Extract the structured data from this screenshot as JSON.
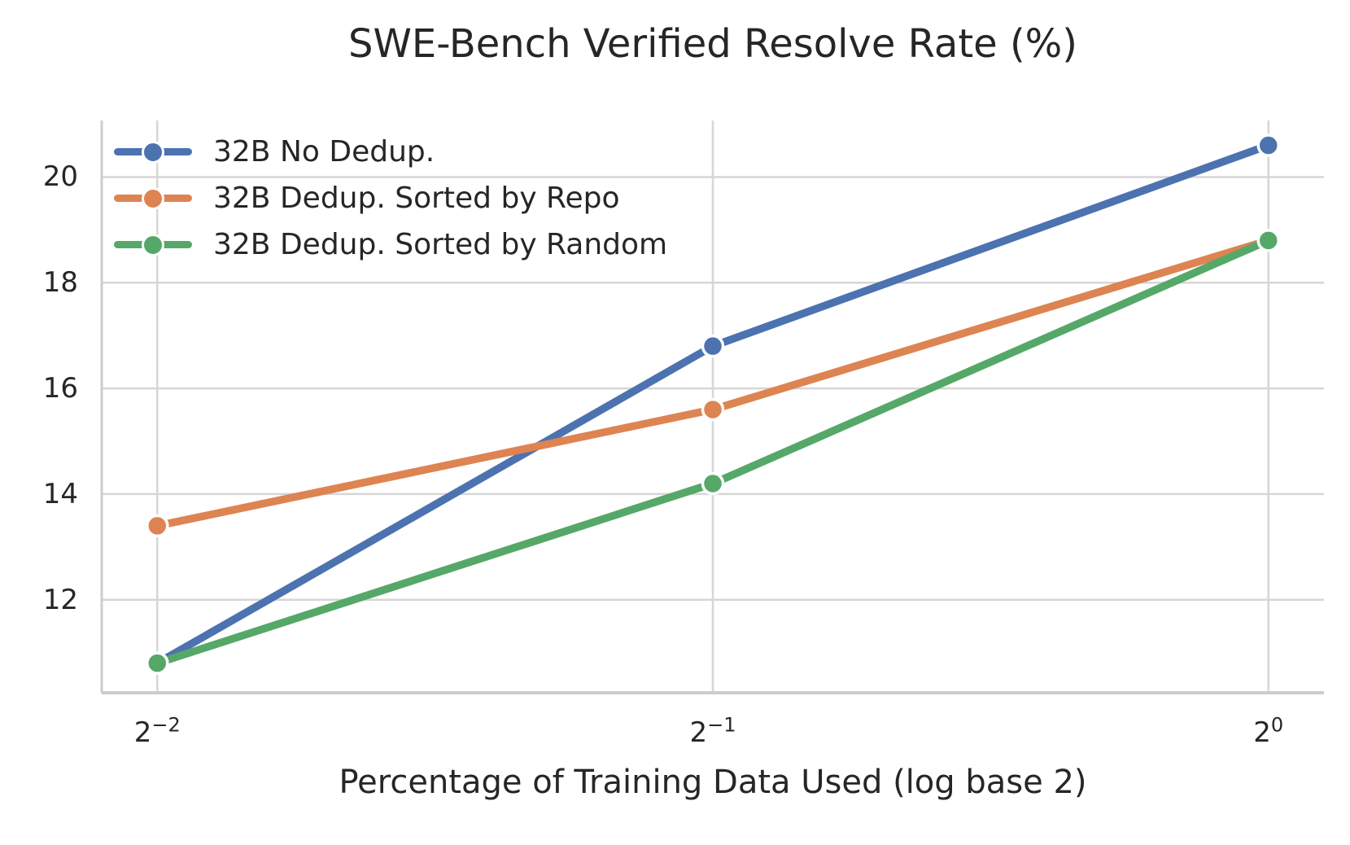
{
  "chart_data": {
    "type": "line",
    "title": "SWE-Bench Verified Resolve Rate (%)",
    "xlabel": "Percentage of Training Data Used (log base 2)",
    "ylabel": "",
    "x": [
      0.25,
      0.5,
      1.0
    ],
    "xtick_labels": [
      {
        "base": "2",
        "exp": "−2"
      },
      {
        "base": "2",
        "exp": "−1"
      },
      {
        "base": "2",
        "exp": "0"
      }
    ],
    "yticks": [
      12,
      14,
      16,
      18,
      20
    ],
    "ylim": [
      10.24,
      21.07
    ],
    "xlim_log2": [
      -2.1,
      0.1
    ],
    "grid": true,
    "legend_position": "upper-left",
    "series": [
      {
        "name": "32B No Dedup.",
        "color": "#4C72B0",
        "values": [
          10.8,
          16.8,
          20.6
        ]
      },
      {
        "name": "32B Dedup. Sorted by Repo",
        "color": "#DD8452",
        "values": [
          13.4,
          15.6,
          18.8
        ]
      },
      {
        "name": "32B Dedup. Sorted by Random",
        "color": "#55A868",
        "values": [
          10.8,
          14.2,
          18.8
        ]
      }
    ],
    "style": {
      "background": "#ffffff",
      "grid_color": "#d6d6d6",
      "axis_color": "#cccccc",
      "text_color": "#262626",
      "marker_edge_color": "#ffffff"
    }
  }
}
